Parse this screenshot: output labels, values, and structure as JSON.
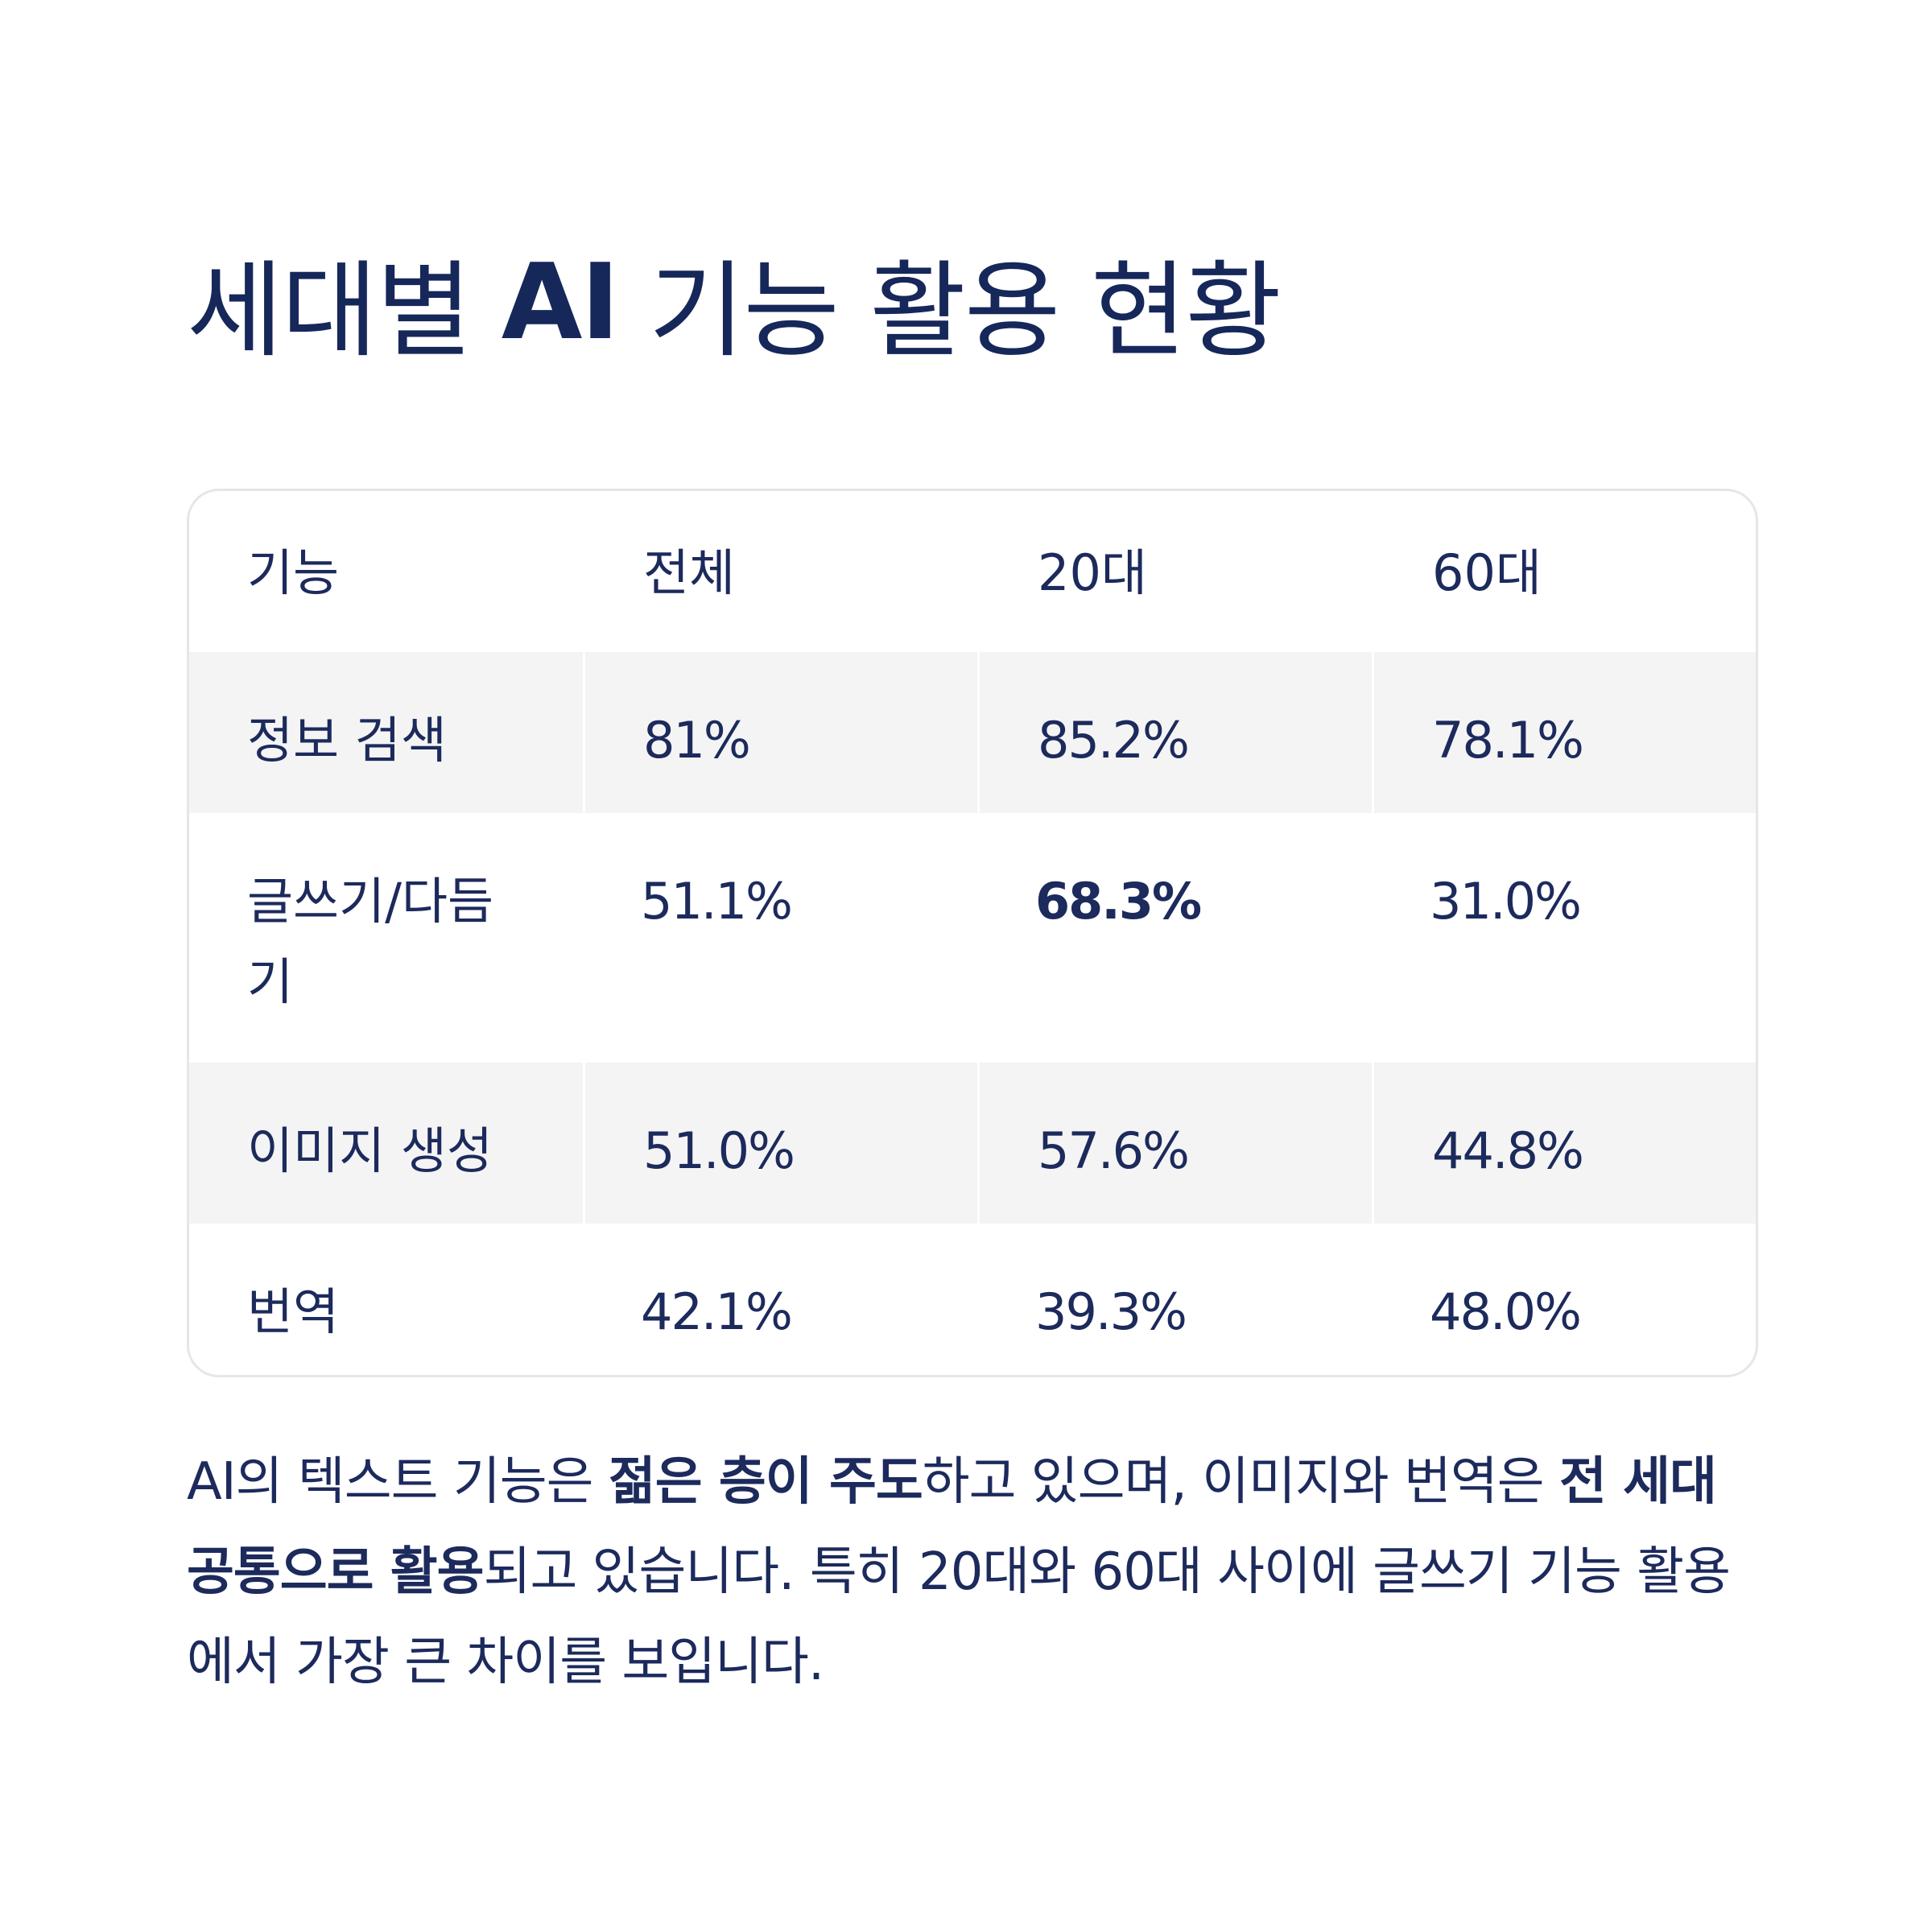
{
  "title": {
    "part1": "세대별",
    "part2": "AI",
    "part3": "기능 활용 현황"
  },
  "table": {
    "headers": [
      "기능",
      "전체",
      "20대",
      "60대"
    ],
    "rows": [
      {
        "feature": "정보 검색",
        "total": "81%",
        "age20": "85.2%",
        "age60": "78.1%"
      },
      {
        "feature": "글쓰기/다듬기",
        "total": "51.1%",
        "age20": "68.3%",
        "age60": "31.0%"
      },
      {
        "feature": "이미지 생성",
        "total": "51.0%",
        "age20": "57.6%",
        "age60": "44.8%"
      },
      {
        "feature": "번역",
        "total": "42.1%",
        "age20": "39.3%",
        "age60": "48.0%"
      }
    ]
  },
  "summary": {
    "s1": "AI의 텍스트 기능은 ",
    "b1": "젊은 층이 주도",
    "s2": "하고 있으며, 이미지와 번역은 ",
    "b2": "전 세대 공통으로 활용",
    "s3": "되고 있습니다. 특히 20대와 60대 사이에 글쓰기 기능 활용에서 가장 큰 차이를 보입니다."
  },
  "colors": {
    "text": "#1c2a5c",
    "shaded_row": "#f4f4f4",
    "border": "#e6e6e6"
  }
}
